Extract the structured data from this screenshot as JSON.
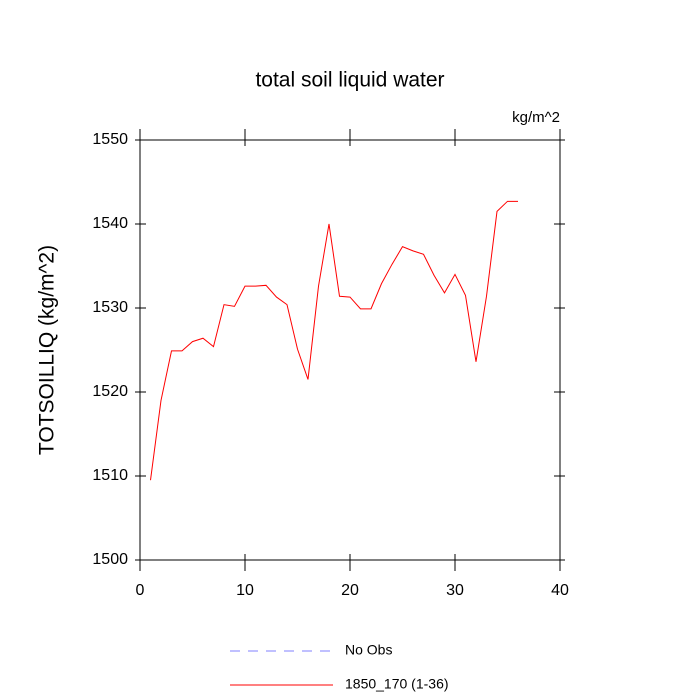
{
  "chart_data": {
    "type": "line",
    "title": "total soil liquid water",
    "units": "kg/m^2",
    "y_label": "TOTSOILLIQ  (kg/m^2)",
    "x": [
      1,
      2,
      3,
      4,
      5,
      6,
      7,
      8,
      9,
      10,
      11,
      12,
      13,
      14,
      15,
      16,
      17,
      18,
      19,
      20,
      21,
      22,
      23,
      24,
      25,
      26,
      27,
      28,
      29,
      30,
      31,
      32,
      33,
      34,
      35,
      36
    ],
    "series": [
      {
        "name": "No Obs",
        "color": "#8080ff",
        "dashed": true,
        "values": [
          null,
          null,
          null,
          null,
          null,
          null,
          null,
          null,
          null,
          null,
          null,
          null,
          null,
          null,
          null,
          null,
          null,
          null,
          null,
          null,
          null,
          null,
          null,
          null,
          null,
          null,
          null,
          null,
          null,
          null,
          null,
          null,
          null,
          null,
          null,
          null
        ]
      },
      {
        "name": "1850_170 (1-36)",
        "color": "#ff0000",
        "dashed": false,
        "values": [
          1509.5,
          1519.0,
          1524.9,
          1524.9,
          1526.0,
          1526.4,
          1525.4,
          1530.4,
          1530.2,
          1532.6,
          1532.6,
          1532.7,
          1531.3,
          1530.4,
          1525.1,
          1521.5,
          1532.6,
          1540.0,
          1531.4,
          1531.3,
          1529.9,
          1529.9,
          1532.9,
          1535.2,
          1537.3,
          1536.8,
          1536.4,
          1533.9,
          1531.8,
          1534.0,
          1531.5,
          1523.6,
          1531.4,
          1541.5,
          1542.7,
          1542.7
        ]
      }
    ],
    "xlim": [
      0,
      40
    ],
    "xticks": [
      0,
      10,
      20,
      30,
      40
    ],
    "ylim": [
      1500,
      1550
    ],
    "yticks": [
      1500,
      1510,
      1520,
      1530,
      1540,
      1550
    ],
    "grid": false
  }
}
